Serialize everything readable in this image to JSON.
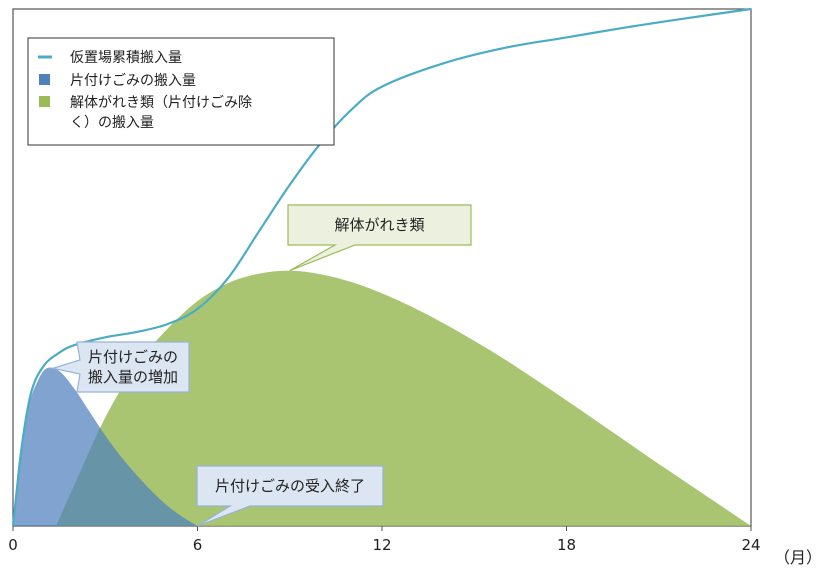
{
  "chart_data": {
    "type": "area",
    "x_unit": "（月）",
    "x_ticks": [
      0,
      6,
      12,
      18,
      24
    ],
    "xlim": [
      0,
      24
    ],
    "ylim": [
      0,
      100
    ],
    "series": [
      {
        "name": "仮置場累積搬入量",
        "kind": "line",
        "color": "#4bacc6",
        "x": [
          0,
          0.3,
          0.6,
          1,
          1.5,
          2,
          3,
          4,
          5,
          6,
          7,
          8,
          9,
          10,
          11,
          12,
          14,
          16,
          18,
          20,
          22,
          24
        ],
        "y": [
          0,
          16,
          26,
          31,
          33.5,
          35,
          36.5,
          37.5,
          39,
          42,
          48,
          57,
          66,
          74,
          80.5,
          85,
          89.5,
          92.5,
          94.5,
          96.5,
          98.3,
          100
        ]
      },
      {
        "name": "片付けごみの搬入量",
        "kind": "area",
        "color": "#4f81bd",
        "x": [
          0,
          0.2,
          0.5,
          0.8,
          1.1,
          1.5,
          2,
          2.5,
          3,
          3.5,
          4,
          4.5,
          5,
          5.5,
          6
        ],
        "y": [
          0,
          13,
          23,
          28,
          30.5,
          30,
          26.5,
          22,
          17.5,
          13.5,
          10,
          6.8,
          4,
          1.8,
          0
        ]
      },
      {
        "name": "解体がれき類（片付けごみ除く）の搬入量",
        "kind": "area",
        "color": "#9bbb59",
        "x": [
          1.4,
          2,
          3,
          4,
          5,
          6,
          7,
          8,
          9,
          10,
          11,
          12,
          13,
          14,
          15,
          16,
          17,
          18,
          19,
          20,
          21,
          22,
          23,
          24
        ],
        "y": [
          0,
          8,
          21,
          31,
          38,
          43.5,
          47,
          48.8,
          49.4,
          48.7,
          47.2,
          45,
          42.3,
          39.2,
          35.8,
          32.2,
          28.3,
          24.3,
          20.2,
          16.1,
          12,
          8,
          4,
          0
        ]
      }
    ],
    "annotations": [
      {
        "id": "rubble",
        "text_lines": [
          "解体がれき類"
        ],
        "x": 9,
        "y": 49.4
      },
      {
        "id": "increase",
        "text_lines": [
          "片付けごみの",
          "搬入量の増加"
        ],
        "x": 1.3,
        "y": 30.5
      },
      {
        "id": "end",
        "text_lines": [
          "片付けごみの受入終了"
        ],
        "x": 6,
        "y": 0
      }
    ]
  },
  "legend": {
    "items": [
      {
        "label_lines": [
          "仮置場累積搬入量"
        ],
        "marker": "line",
        "color": "#4bacc6"
      },
      {
        "label_lines": [
          "片付けごみの搬入量"
        ],
        "marker": "square",
        "color": "#4f81bd"
      },
      {
        "label_lines": [
          "解体がれき類（片付けごみ除",
          "く）の搬入量"
        ],
        "marker": "square",
        "color": "#9bbb59"
      }
    ]
  }
}
